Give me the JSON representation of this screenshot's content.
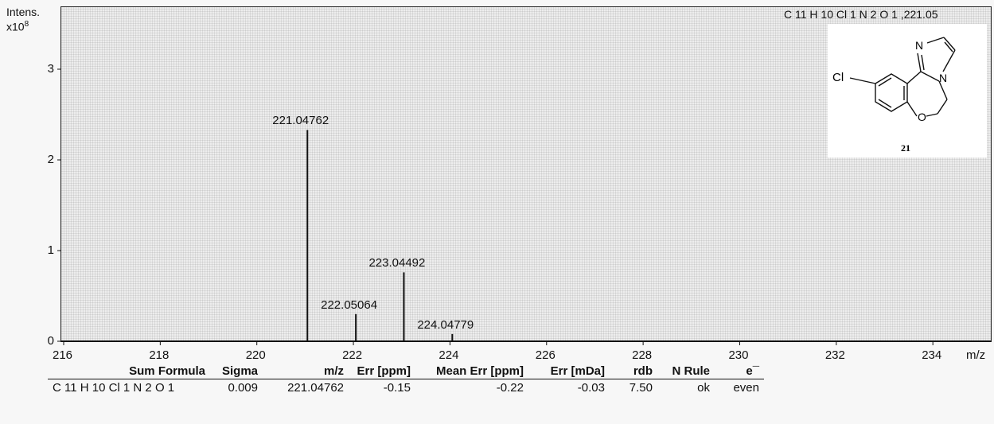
{
  "chart_data": {
    "type": "bar",
    "ylabel_line1": "Intens.",
    "ylabel_line2": "x10",
    "ylabel_exp": "8",
    "xlabel": "m/z",
    "legend_formula": "C 11 H 10 Cl 1 N 2 O 1 ,221.05",
    "xlim": [
      216,
      235.2
    ],
    "ylim": [
      0,
      3.2
    ],
    "x_ticks": [
      216,
      218,
      220,
      222,
      224,
      226,
      228,
      230,
      232,
      234
    ],
    "y_ticks": [
      0,
      1,
      2,
      3
    ],
    "peaks": [
      {
        "mz": 221.04762,
        "intensity": 2.33,
        "label": "221.04762"
      },
      {
        "mz": 222.05064,
        "intensity": 0.3,
        "label": "222.05064"
      },
      {
        "mz": 223.04492,
        "intensity": 0.76,
        "label": "223.04492"
      },
      {
        "mz": 224.04779,
        "intensity": 0.08,
        "label": "224.04779"
      }
    ]
  },
  "structure": {
    "substituent_label": "Cl",
    "n_top_label": "N",
    "n_ring_label": "N",
    "o_label": "O",
    "compound_number": "21"
  },
  "table": {
    "headers": [
      "Sum Formula",
      "Sigma",
      "m/z",
      "Err [ppm]",
      "Mean Err [ppm]",
      "Err [mDa]",
      "rdb",
      "N Rule",
      "e¯"
    ],
    "row": [
      "C 11 H 10 Cl 1 N 2 O 1",
      "0.009",
      "221.04762",
      "-0.15",
      "-0.22",
      "-0.03",
      "7.50",
      "ok",
      "even"
    ]
  }
}
